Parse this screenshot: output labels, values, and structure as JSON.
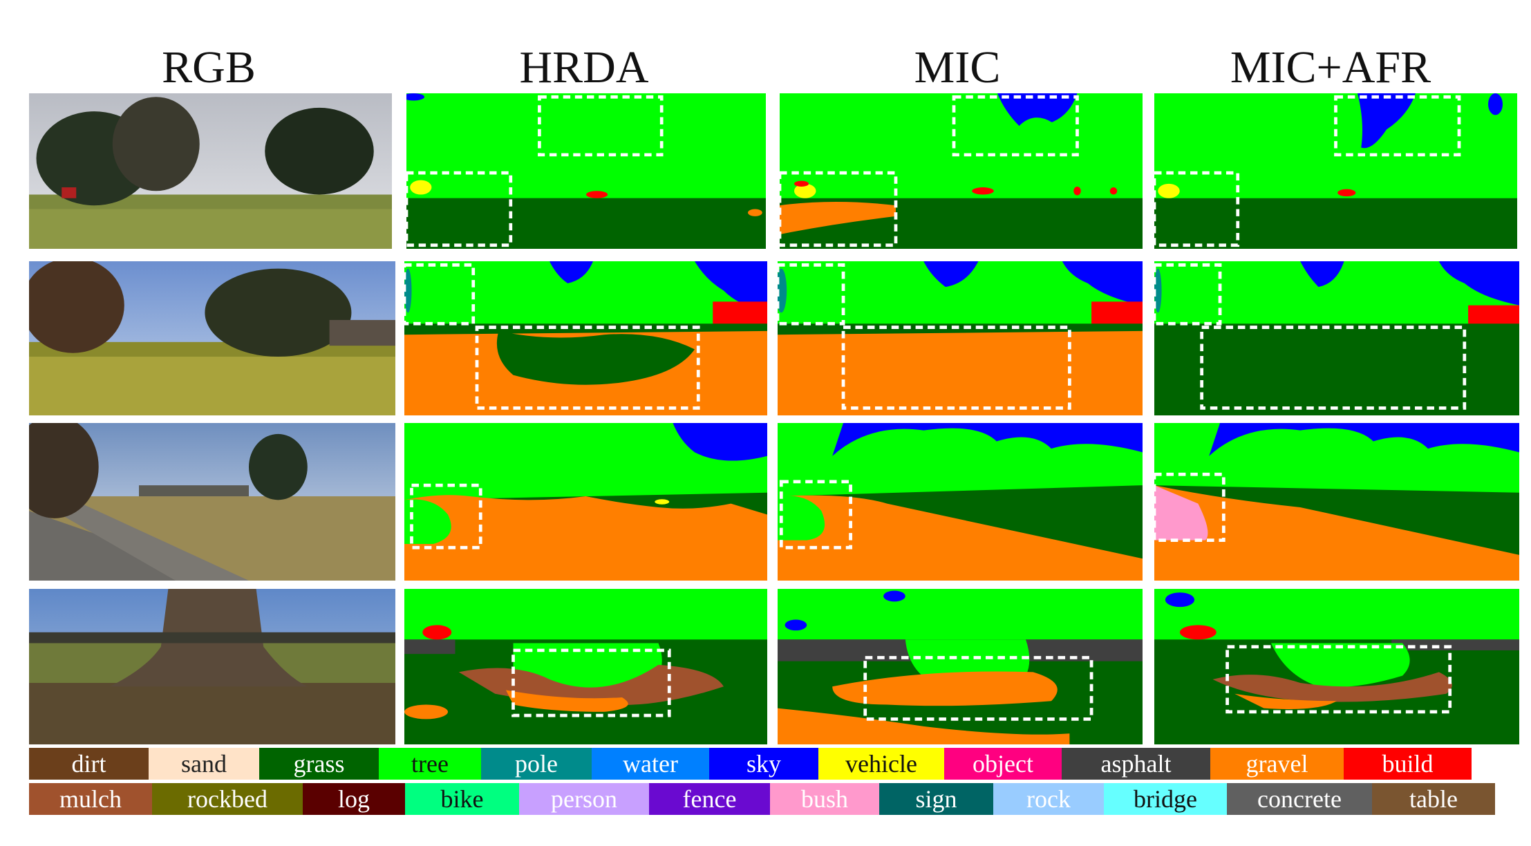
{
  "columns": [
    "RGB",
    "HRDA",
    "MIC",
    "MIC+AFR"
  ],
  "colors": {
    "tree": "#00ff00",
    "grass": "#006400",
    "sky": "#0000ff",
    "gravel": "#ff7f00",
    "build": "#ff0000",
    "vehicle": "#ffff00",
    "pole": "#008b8b",
    "asphalt": "#404040",
    "mulch": "#a0522d",
    "bush": "#ff99cc",
    "highlight": "#ffffff"
  },
  "legend": {
    "row1": [
      {
        "label": "dirt",
        "bg": "#6b3f1b",
        "fg": "#ffffff"
      },
      {
        "label": "sand",
        "bg": "#ffe3c8",
        "fg": "#222222"
      },
      {
        "label": "grass",
        "bg": "#006400",
        "fg": "#ffffff"
      },
      {
        "label": "tree",
        "bg": "#00ff00",
        "fg": "#111111"
      },
      {
        "label": "pole",
        "bg": "#008b8b",
        "fg": "#ffffff"
      },
      {
        "label": "water",
        "bg": "#0080ff",
        "fg": "#ffffff"
      },
      {
        "label": "sky",
        "bg": "#0000ff",
        "fg": "#ffffff"
      },
      {
        "label": "vehicle",
        "bg": "#ffff00",
        "fg": "#111111"
      },
      {
        "label": "object",
        "bg": "#ff0080",
        "fg": "#ffffff"
      },
      {
        "label": "asphalt",
        "bg": "#404040",
        "fg": "#ffffff"
      },
      {
        "label": "gravel",
        "bg": "#ff7f00",
        "fg": "#ffffff"
      },
      {
        "label": "build",
        "bg": "#ff0000",
        "fg": "#ffffff"
      }
    ],
    "row2": [
      {
        "label": "mulch",
        "bg": "#a0522d",
        "fg": "#ffffff"
      },
      {
        "label": "rockbed",
        "bg": "#6b6b00",
        "fg": "#ffffff"
      },
      {
        "label": "log",
        "bg": "#5a0000",
        "fg": "#ffffff"
      },
      {
        "label": "bike",
        "bg": "#00ff80",
        "fg": "#111111"
      },
      {
        "label": "person",
        "bg": "#c8a0ff",
        "fg": "#ffffff"
      },
      {
        "label": "fence",
        "bg": "#6a0ad0",
        "fg": "#ffffff"
      },
      {
        "label": "bush",
        "bg": "#ff99cc",
        "fg": "#ffffff"
      },
      {
        "label": "sign",
        "bg": "#006464",
        "fg": "#ffffff"
      },
      {
        "label": "rock",
        "bg": "#99ccff",
        "fg": "#ffffff"
      },
      {
        "label": "bridge",
        "bg": "#66ffff",
        "fg": "#111111"
      },
      {
        "label": "concrete",
        "bg": "#606060",
        "fg": "#ffffff"
      },
      {
        "label": "table",
        "bg": "#7a5530",
        "fg": "#ffffff"
      }
    ]
  }
}
